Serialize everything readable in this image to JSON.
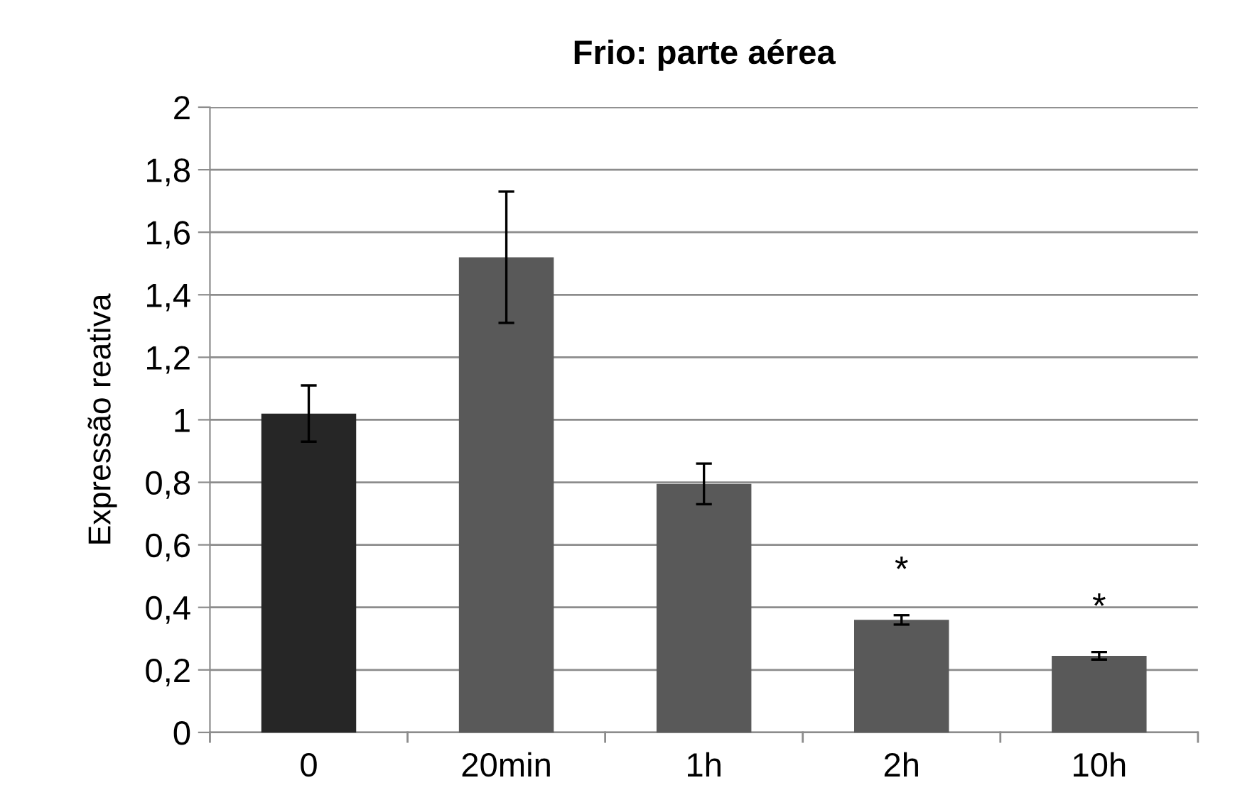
{
  "chart_data": {
    "type": "bar",
    "title": "Frio: parte aérea",
    "ylabel": "Expressão reativa",
    "categories": [
      "0",
      "20min",
      "1h",
      "2h",
      "10h"
    ],
    "values": [
      1.02,
      1.52,
      0.795,
      0.36,
      0.245
    ],
    "errors": [
      0.09,
      0.21,
      0.065,
      0.015,
      0.012
    ],
    "colors": [
      "#262626",
      "#595959",
      "#595959",
      "#595959",
      "#595959"
    ],
    "ylim": [
      0,
      2
    ],
    "yticks": [
      0,
      {
        "value": 0.2,
        "label": "0,2"
      },
      {
        "value": 0.4,
        "label": "0,4"
      },
      {
        "value": 0.6,
        "label": "0,6"
      },
      {
        "value": 0.8,
        "label": "0,8"
      },
      1,
      {
        "value": 1.2,
        "label": "1,2"
      },
      {
        "value": 1.4,
        "label": "1,4"
      },
      {
        "value": 1.6,
        "label": "1,6"
      },
      {
        "value": 1.8,
        "label": "1,8"
      },
      2
    ],
    "grid": "y",
    "value_labels": [
      null,
      null,
      null,
      "*",
      "*"
    ]
  }
}
